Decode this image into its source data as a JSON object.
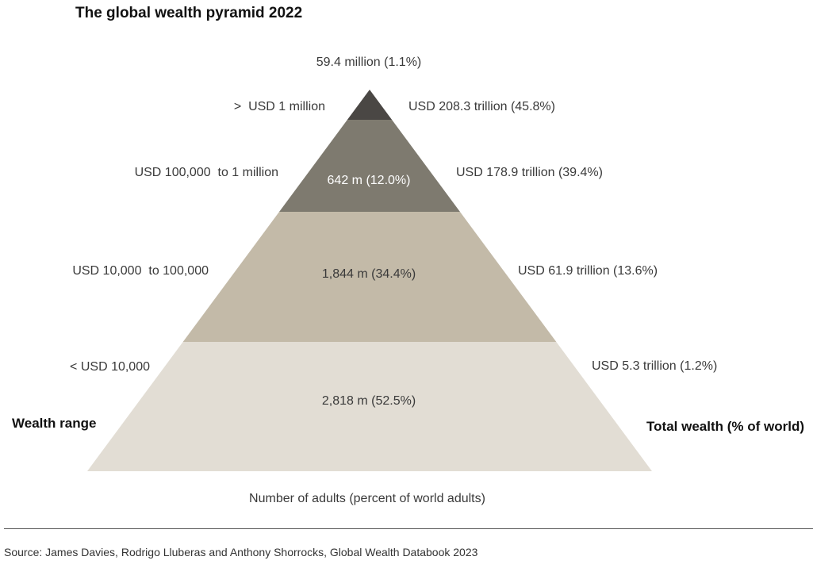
{
  "title": "The global wealth pyramid 2022",
  "chart_data": {
    "type": "pyramid",
    "tiers": [
      {
        "wealth_range": "< USD 10,000",
        "adults": "2,818 m (52.5%)",
        "adults_millions": 2818,
        "adults_pct": 52.5,
        "total_wealth": "USD 5.3 trillion (1.2%)",
        "wealth_trillion_usd": 5.3,
        "wealth_pct": 1.2,
        "color": "#e2ddd4"
      },
      {
        "wealth_range": "USD 10,000  to 100,000",
        "adults": "1,844 m (34.4%)",
        "adults_millions": 1844,
        "adults_pct": 34.4,
        "total_wealth": "USD 61.9 trillion (13.6%)",
        "wealth_trillion_usd": 61.9,
        "wealth_pct": 13.6,
        "color": "#c3baa8"
      },
      {
        "wealth_range": "USD 100,000  to 1 million",
        "adults": "642 m (12.0%)",
        "adults_millions": 642,
        "adults_pct": 12.0,
        "total_wealth": "USD 178.9 trillion (39.4%)",
        "wealth_trillion_usd": 178.9,
        "wealth_pct": 39.4,
        "color": "#7e7a6f"
      },
      {
        "wealth_range": ">  USD 1 million",
        "adults": "59.4 million (1.1%)",
        "adults_millions": 59.4,
        "adults_pct": 1.1,
        "total_wealth": "USD 208.3 trillion (45.8%)",
        "wealth_trillion_usd": 208.3,
        "wealth_pct": 45.8,
        "color": "#4a4744"
      }
    ],
    "left_axis_label": "Wealth range",
    "right_axis_label": "Total wealth (% of world)",
    "bottom_label": "Number of adults (percent of world adults)"
  },
  "source": "Source: James Davies, Rodrigo Lluberas and Anthony Shorrocks, Global Wealth Databook 2023"
}
